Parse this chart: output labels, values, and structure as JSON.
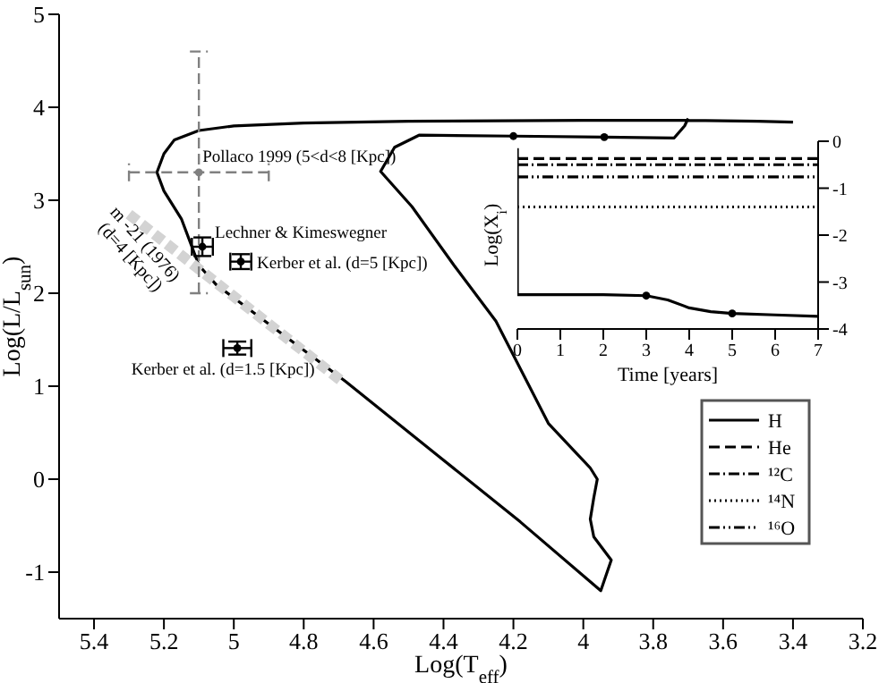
{
  "chart_data": [
    {
      "type": "line",
      "xlabel": "Log(T$_{eff}$)",
      "ylabel": "Log(L/L$_{sun}$)",
      "xlim": [
        5.5,
        3.2
      ],
      "xticks": [
        5.4,
        5.2,
        5,
        4.8,
        4.6,
        4.4,
        4.2,
        4,
        3.8,
        3.6,
        3.4,
        3.2
      ],
      "ylim": [
        -1.5,
        5
      ],
      "yticks": [
        -1,
        0,
        1,
        2,
        3,
        4,
        5
      ],
      "series": [
        {
          "color": "#000000",
          "line_style": "solid",
          "marker": "none",
          "x": [
            3.4,
            3.5,
            3.7,
            4.0,
            4.5,
            4.8,
            5.0,
            5.1,
            5.17,
            5.2,
            5.22,
            5.2,
            5.15,
            5.1,
            5.05,
            4.68,
            4.18,
            3.95,
            3.92,
            3.97,
            3.98,
            3.97,
            3.96,
            3.98,
            4.0,
            4.1,
            4.25,
            4.37,
            4.49,
            4.58,
            4.54,
            4.47,
            4.2,
            3.94,
            3.74,
            3.71,
            3.7
          ],
          "values": [
            3.84,
            3.85,
            3.86,
            3.86,
            3.85,
            3.83,
            3.8,
            3.75,
            3.65,
            3.5,
            3.3,
            3.1,
            2.8,
            2.3,
            2.09,
            1.05,
            -0.46,
            -1.2,
            -0.87,
            -0.62,
            -0.43,
            -0.2,
            0,
            0.12,
            0.2,
            0.6,
            1.7,
            2.3,
            2.93,
            3.31,
            3.57,
            3.7,
            3.69,
            3.68,
            3.67,
            3.8,
            3.88
          ]
        },
        {
          "type": "scatter",
          "color": "#000000",
          "marker": "circle",
          "x": [
            4.2,
            3.94
          ],
          "values": [
            3.69,
            3.68
          ]
        },
        {
          "name": "m -21 (1976) (d=4 [Kpc])",
          "color": "#d3d3d3",
          "line_style": "dashed",
          "marker": "none",
          "x": [
            5.3,
            4.69
          ],
          "values": [
            2.85,
            1.05
          ]
        },
        {
          "type": "scatter",
          "color": "#808080",
          "line_style": "dashed",
          "marker": "circle",
          "x": [
            5.1
          ],
          "values": [
            3.3
          ],
          "xerrors": [
            0.2
          ],
          "errors": [
            1.3
          ]
        },
        {
          "type": "scatter",
          "color": "#000000",
          "line_style": "solid",
          "marker": "circle",
          "x": [
            5.09,
            4.98,
            4.99
          ],
          "values": [
            2.5,
            2.34,
            1.41
          ],
          "xerrors": [
            0.03,
            0.03,
            0.04
          ],
          "errors": [
            0.1,
            0.08,
            0.07
          ]
        }
      ],
      "annotations": [
        {
          "text": "Pollaco 1999 (5<d<8 [Kpc])",
          "x": 5.1,
          "y": 3.3
        },
        {
          "text": "Lechner & Kimeswegner",
          "x": 5.09,
          "y": 2.5
        },
        {
          "text": "Kerber et al. (d=5 [Kpc])",
          "x": 4.98,
          "y": 2.34
        },
        {
          "text": "Kerber et al. (d=1.5 [Kpc])",
          "x": 4.99,
          "y": 1.41
        }
      ]
    },
    {
      "type": "line",
      "xlabel": "Time [years]",
      "ylabel": "Log(X$_{i}$)",
      "xlim": [
        0,
        7
      ],
      "xticks": [
        0,
        1,
        2,
        3,
        4,
        5,
        6,
        7
      ],
      "ylim": [
        -4,
        0
      ],
      "yticks": [
        -4,
        -3,
        -2,
        -1,
        0
      ],
      "legend": "bottom right",
      "marker": "none",
      "series": [
        {
          "name": "H",
          "color": "#000000",
          "line_style": "solid",
          "x": [
            0,
            0,
            1,
            2,
            3,
            3.5,
            4,
            4.5,
            5,
            6,
            7
          ],
          "values": [
            -0.15,
            -3.27,
            -3.27,
            -3.27,
            -3.29,
            -3.38,
            -3.55,
            -3.63,
            -3.67,
            -3.7,
            -3.73
          ]
        },
        {
          "name": "He",
          "color": "#000000",
          "line_style": "dashed",
          "x": [
            0,
            7
          ],
          "values": [
            -0.37,
            -0.37
          ]
        },
        {
          "name": "¹²C",
          "color": "#000000",
          "line_style": "dashdot",
          "x": [
            0,
            7
          ],
          "values": [
            -0.5,
            -0.5
          ]
        },
        {
          "name": "¹⁴N",
          "color": "#000000",
          "line_style": "dotted",
          "x": [
            0,
            7
          ],
          "values": [
            -1.4,
            -1.4
          ]
        },
        {
          "name": "¹⁶O",
          "color": "#000000",
          "line_style": "dashdotdot",
          "x": [
            0,
            7
          ],
          "values": [
            -0.76,
            -0.76
          ]
        },
        {
          "type": "scatter",
          "color": "#000000",
          "marker": "circle",
          "x": [
            3,
            5
          ],
          "values": [
            -3.29,
            -3.67
          ]
        }
      ]
    }
  ]
}
